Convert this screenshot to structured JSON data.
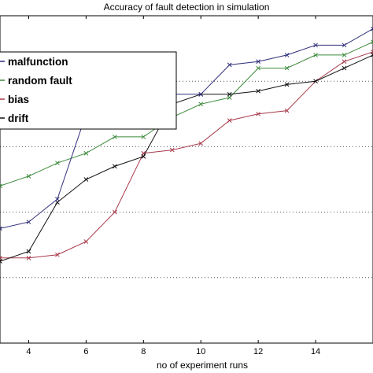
{
  "chart_data": {
    "type": "line",
    "title": "Accuracy of fault detection in simulation",
    "xlabel": "no of experiment runs",
    "ylabel": "",
    "xlim": [
      3,
      16
    ],
    "ylim": [
      0,
      100
    ],
    "x_ticks": [
      4,
      6,
      8,
      10,
      12,
      14
    ],
    "grid": "horizontal-dotted",
    "legend_position": "top-left",
    "x": [
      3,
      4,
      5,
      6,
      7,
      8,
      9,
      10,
      11,
      12,
      13,
      14,
      15,
      16
    ],
    "series": [
      {
        "name": "malfunction",
        "color": "#2e2e7a",
        "values": [
          35,
          37,
          44,
          70,
          71,
          74,
          76,
          76,
          85,
          86,
          88,
          91,
          91,
          96
        ]
      },
      {
        "name": "random fault",
        "color": "#3a8a3a",
        "values": [
          48,
          51,
          55,
          58,
          63,
          63,
          69,
          73,
          75,
          84,
          84,
          88,
          88,
          92
        ]
      },
      {
        "name": "bias",
        "color": "#a83a4a",
        "values": [
          26,
          26,
          27,
          31,
          40,
          58,
          59,
          61,
          68,
          70,
          71,
          80,
          86,
          89
        ]
      },
      {
        "name": "drift",
        "color": "#111111",
        "values": [
          25,
          28,
          43,
          50,
          54,
          57,
          73,
          76,
          76,
          77,
          79,
          80,
          84,
          88
        ]
      }
    ]
  }
}
